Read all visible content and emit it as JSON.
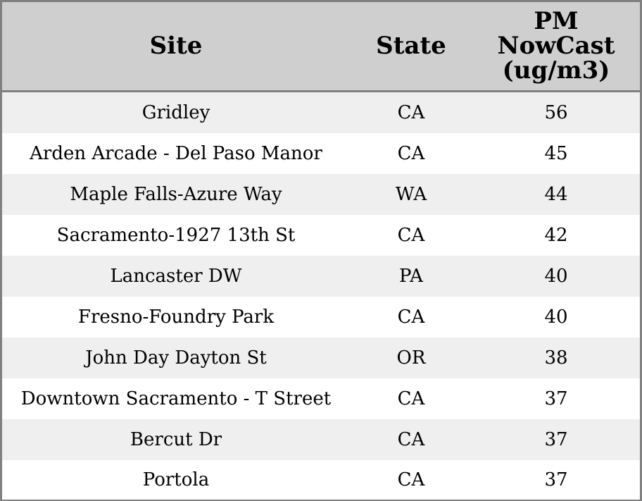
{
  "chart_data": {
    "type": "table",
    "columns": [
      "Site",
      "State",
      "PM NowCast (ug/m3)"
    ],
    "column_header_lines": {
      "site": [
        "Site"
      ],
      "state": [
        "State"
      ],
      "pm": [
        "PM",
        "NowCast",
        "(ug/m3)"
      ]
    },
    "rows": [
      {
        "site": "Gridley",
        "state": "CA",
        "pm": 56
      },
      {
        "site": "Arden Arcade - Del Paso Manor",
        "state": "CA",
        "pm": 45
      },
      {
        "site": "Maple Falls-Azure Way",
        "state": "WA",
        "pm": 44
      },
      {
        "site": "Sacramento-1927 13th St",
        "state": "CA",
        "pm": 42
      },
      {
        "site": "Lancaster DW",
        "state": "PA",
        "pm": 40
      },
      {
        "site": "Fresno-Foundry Park",
        "state": "CA",
        "pm": 40
      },
      {
        "site": "John Day Dayton St",
        "state": "OR",
        "pm": 38
      },
      {
        "site": "Downtown Sacramento - T Street",
        "state": "CA",
        "pm": 37
      },
      {
        "site": "Bercut Dr",
        "state": "CA",
        "pm": 37
      },
      {
        "site": "Portola",
        "state": "CA",
        "pm": 37
      }
    ]
  },
  "colors": {
    "header_bg": "#cfcfcf",
    "row_stripe": "#efefef",
    "row_plain": "#ffffff",
    "border": "#808080"
  }
}
